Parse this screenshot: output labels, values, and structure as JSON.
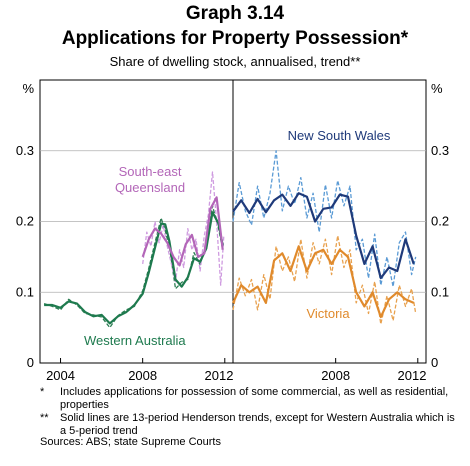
{
  "header": {
    "graph_label": "Graph 3.14",
    "title": "Applications for Property Possession*",
    "subtitle": "Share of dwelling stock, annualised, trend**"
  },
  "colors": {
    "western_australia": "#1e7a4e",
    "south_east_queensland": "#b366b8",
    "new_south_wales": "#1f3a7a",
    "victoria": "#e08a2c",
    "raw_nsw": "#5b9bd5",
    "raw_vic": "#e8a14e",
    "raw_sea": "#cf9be0",
    "raw_wa": "#2a7d52"
  },
  "chart_data": [
    {
      "panel": "left",
      "type": "line",
      "ylabel": "%",
      "ylim": [
        0,
        0.4
      ],
      "yticks": [
        "0",
        "0.1",
        "0.2",
        "0.3"
      ],
      "xlim": [
        2003,
        2012.4
      ],
      "xticks": [
        "2004",
        "2008",
        "2012"
      ],
      "annotations": [
        "South-east Queensland",
        "Western Australia"
      ],
      "series": [
        {
          "name": "Western Australia",
          "style": "solid",
          "x": [
            2003.2,
            2003.6,
            2004.0,
            2004.4,
            2004.8,
            2005.2,
            2005.6,
            2006.0,
            2006.4,
            2006.8,
            2007.2,
            2007.6,
            2008.0,
            2008.3,
            2008.6,
            2008.9,
            2009.1,
            2009.3,
            2009.6,
            2009.9,
            2010.2,
            2010.5,
            2010.8,
            2011.1,
            2011.4,
            2011.7,
            2011.9
          ],
          "values": [
            0.082,
            0.082,
            0.078,
            0.087,
            0.084,
            0.072,
            0.066,
            0.068,
            0.056,
            0.066,
            0.072,
            0.082,
            0.098,
            0.128,
            0.163,
            0.197,
            0.196,
            0.172,
            0.118,
            0.108,
            0.121,
            0.148,
            0.143,
            0.162,
            0.213,
            0.197,
            0.166
          ]
        },
        {
          "name": "Western Australia raw",
          "style": "dashed",
          "x": [
            2003.2,
            2003.6,
            2004.0,
            2004.4,
            2004.8,
            2005.2,
            2005.6,
            2006.0,
            2006.4,
            2006.8,
            2007.2,
            2007.6,
            2008.0,
            2008.3,
            2008.6,
            2008.9,
            2009.1,
            2009.3,
            2009.6,
            2009.9,
            2010.2,
            2010.5,
            2010.8,
            2011.1,
            2011.4,
            2011.7,
            2011.9
          ],
          "values": [
            0.084,
            0.08,
            0.075,
            0.09,
            0.082,
            0.07,
            0.068,
            0.065,
            0.05,
            0.067,
            0.075,
            0.08,
            0.102,
            0.134,
            0.17,
            0.205,
            0.187,
            0.164,
            0.105,
            0.114,
            0.118,
            0.156,
            0.139,
            0.168,
            0.222,
            0.19,
            0.16
          ]
        },
        {
          "name": "South-east Queensland",
          "style": "solid",
          "x": [
            2008.0,
            2008.3,
            2008.6,
            2008.9,
            2009.2,
            2009.5,
            2009.8,
            2010.1,
            2010.4,
            2010.7,
            2011.0,
            2011.3,
            2011.6,
            2011.9
          ],
          "values": [
            0.15,
            0.175,
            0.19,
            0.183,
            0.17,
            0.15,
            0.138,
            0.168,
            0.181,
            0.15,
            0.155,
            0.218,
            0.234,
            0.16
          ]
        },
        {
          "name": "South-east Queensland raw",
          "style": "dashed",
          "x": [
            2008.0,
            2008.2,
            2008.4,
            2008.6,
            2008.8,
            2009.0,
            2009.2,
            2009.4,
            2009.6,
            2009.8,
            2010.0,
            2010.2,
            2010.4,
            2010.6,
            2010.8,
            2011.0,
            2011.2,
            2011.4,
            2011.6,
            2011.8,
            2011.95
          ],
          "values": [
            0.14,
            0.185,
            0.165,
            0.2,
            0.17,
            0.195,
            0.165,
            0.14,
            0.115,
            0.16,
            0.135,
            0.19,
            0.16,
            0.175,
            0.13,
            0.18,
            0.21,
            0.27,
            0.2,
            0.11,
            0.18
          ]
        }
      ]
    },
    {
      "panel": "right",
      "type": "line",
      "ylabel": "%",
      "ylim": [
        0,
        0.4
      ],
      "yticks": [
        "0",
        "0.1",
        "0.2",
        "0.3"
      ],
      "xlim": [
        2003,
        2012.4
      ],
      "xticks": [
        "2008",
        "2012"
      ],
      "annotations": [
        "New South Wales",
        "Victoria"
      ],
      "series": [
        {
          "name": "New South Wales",
          "style": "solid",
          "x": [
            2003.0,
            2003.4,
            2003.8,
            2004.2,
            2004.6,
            2005.0,
            2005.4,
            2005.8,
            2006.2,
            2006.6,
            2007.0,
            2007.4,
            2007.8,
            2008.2,
            2008.6,
            2009.0,
            2009.4,
            2009.8,
            2010.2,
            2010.6,
            2011.0,
            2011.4,
            2011.8
          ],
          "values": [
            0.214,
            0.23,
            0.212,
            0.232,
            0.213,
            0.23,
            0.238,
            0.222,
            0.24,
            0.235,
            0.2,
            0.218,
            0.22,
            0.238,
            0.235,
            0.18,
            0.14,
            0.165,
            0.12,
            0.135,
            0.13,
            0.175,
            0.14
          ]
        },
        {
          "name": "New South Wales raw",
          "style": "dashed",
          "x": [
            2003.0,
            2003.3,
            2003.6,
            2003.9,
            2004.2,
            2004.5,
            2004.8,
            2005.1,
            2005.4,
            2005.7,
            2006.0,
            2006.3,
            2006.6,
            2006.9,
            2007.2,
            2007.5,
            2007.8,
            2008.1,
            2008.4,
            2008.7,
            2009.0,
            2009.3,
            2009.6,
            2009.9,
            2010.2,
            2010.5,
            2010.8,
            2011.1,
            2011.4,
            2011.7,
            2011.9
          ],
          "values": [
            0.2,
            0.255,
            0.215,
            0.195,
            0.25,
            0.205,
            0.24,
            0.3,
            0.215,
            0.25,
            0.225,
            0.262,
            0.205,
            0.24,
            0.185,
            0.252,
            0.205,
            0.258,
            0.222,
            0.25,
            0.16,
            0.175,
            0.12,
            0.182,
            0.11,
            0.15,
            0.108,
            0.17,
            0.185,
            0.125,
            0.15
          ]
        },
        {
          "name": "Victoria",
          "style": "solid",
          "x": [
            2003.0,
            2003.4,
            2003.8,
            2004.2,
            2004.6,
            2005.0,
            2005.4,
            2005.8,
            2006.2,
            2006.6,
            2007.0,
            2007.4,
            2007.8,
            2008.2,
            2008.6,
            2009.0,
            2009.4,
            2009.8,
            2010.2,
            2010.6,
            2011.0,
            2011.4,
            2011.8
          ],
          "values": [
            0.085,
            0.11,
            0.1,
            0.108,
            0.085,
            0.145,
            0.155,
            0.13,
            0.165,
            0.13,
            0.155,
            0.16,
            0.14,
            0.16,
            0.15,
            0.1,
            0.08,
            0.1,
            0.065,
            0.09,
            0.1,
            0.09,
            0.085
          ]
        },
        {
          "name": "Victoria raw",
          "style": "dashed",
          "x": [
            2003.0,
            2003.3,
            2003.6,
            2003.9,
            2004.2,
            2004.5,
            2004.8,
            2005.1,
            2005.4,
            2005.7,
            2006.0,
            2006.3,
            2006.6,
            2006.9,
            2007.2,
            2007.5,
            2007.8,
            2008.1,
            2008.4,
            2008.7,
            2009.0,
            2009.3,
            2009.6,
            2009.9,
            2010.2,
            2010.5,
            2010.8,
            2011.1,
            2011.4,
            2011.7,
            2011.9
          ],
          "values": [
            0.075,
            0.12,
            0.095,
            0.118,
            0.075,
            0.125,
            0.09,
            0.165,
            0.13,
            0.15,
            0.115,
            0.175,
            0.12,
            0.17,
            0.14,
            0.175,
            0.125,
            0.18,
            0.135,
            0.16,
            0.085,
            0.11,
            0.07,
            0.115,
            0.055,
            0.095,
            0.06,
            0.11,
            0.08,
            0.105,
            0.07
          ]
        }
      ]
    }
  ],
  "footnotes": [
    {
      "mark": "*",
      "text": "Includes applications for possession of some commercial, as well as residential, properties"
    },
    {
      "mark": "**",
      "text": "Solid lines are 13-period Henderson trends, except for Western Australia which is a 5-period trend"
    }
  ],
  "source": "Sources: ABS; state Supreme Courts"
}
